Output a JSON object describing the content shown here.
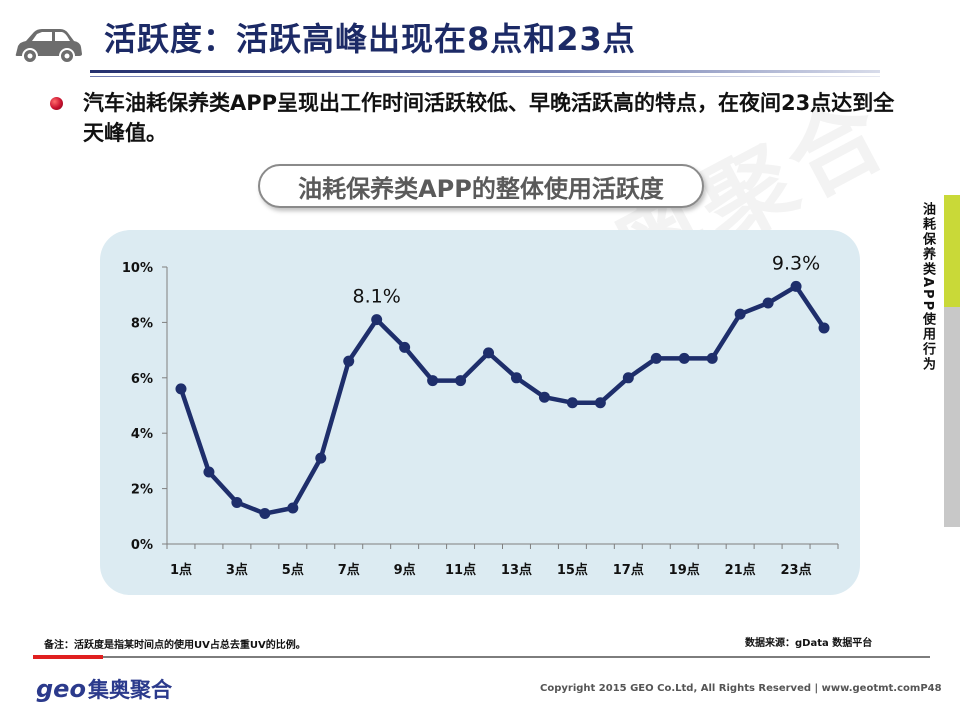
{
  "header": {
    "title": "活跃度：活跃高峰出现在8点和23点",
    "icon": "car-icon"
  },
  "bullet": {
    "text": "汽车油耗保养类APP呈现出工作时间活跃较低、早晚活跃高的特点，在夜间23点达到全天峰值。"
  },
  "watermark": "奥聚合",
  "side_tab": {
    "label": "油耗保养类APP使用行为"
  },
  "chart_data": {
    "type": "line",
    "title": "油耗保养类APP的整体使用活跃度",
    "x": [
      "1点",
      "2点",
      "3点",
      "4点",
      "5点",
      "6点",
      "7点",
      "8点",
      "9点",
      "10点",
      "11点",
      "12点",
      "13点",
      "14点",
      "15点",
      "16点",
      "17点",
      "18点",
      "19点",
      "20点",
      "21点",
      "22点",
      "23点",
      "24点"
    ],
    "x_tick_labels": [
      "1点",
      "3点",
      "5点",
      "7点",
      "9点",
      "11点",
      "13点",
      "15点",
      "17点",
      "19点",
      "21点",
      "23点"
    ],
    "series": [
      {
        "values": [
          5.6,
          2.6,
          1.5,
          1.1,
          1.3,
          3.1,
          6.6,
          8.1,
          7.1,
          5.9,
          5.9,
          6.9,
          6.0,
          5.3,
          5.1,
          5.1,
          6.0,
          6.7,
          6.7,
          6.7,
          8.3,
          8.7,
          9.3,
          7.8
        ]
      }
    ],
    "y_unit": "%",
    "ylim": [
      0,
      10
    ],
    "y_ticks": [
      "0%",
      "2%",
      "4%",
      "6%",
      "8%",
      "10%"
    ],
    "annotations": [
      {
        "x": "8点",
        "label": "8.1%"
      },
      {
        "x": "23点",
        "label": "9.3%"
      }
    ],
    "grid": false,
    "line_color": "#1e2e6b",
    "panel_color": "#dcebf2"
  },
  "footer": {
    "note": "备注：活跃度是指某时间点的使用UV占总去重UV的比例。",
    "source": "数据来源：gData 数据平台",
    "logo_latin": "geo",
    "logo_cn": "集奥聚合",
    "copyright": "Copyright 2015 GEO Co.Ltd, All Rights Reserved | www.geotmt.com",
    "page": "P48"
  },
  "colors": {
    "title": "#1c2a66",
    "bullet": "#c8102e",
    "accent_red": "#e02020",
    "side_green": "#c9d938"
  }
}
